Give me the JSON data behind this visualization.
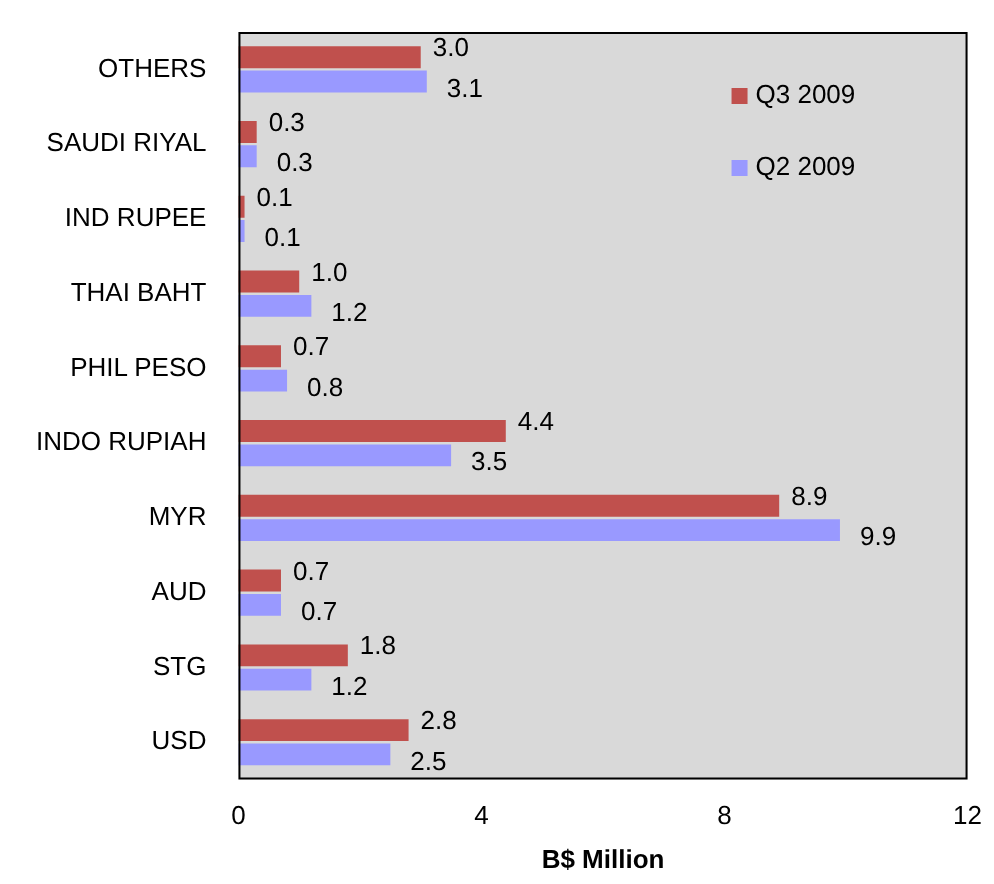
{
  "chart_data": {
    "type": "bar",
    "orientation": "horizontal",
    "xlabel": "B$ Million",
    "categories": [
      "OTHERS",
      "SAUDI RIYAL",
      "IND RUPEE",
      "THAI BAHT",
      "PHIL PESO",
      "INDO RUPIAH",
      "MYR",
      "AUD",
      "STG",
      "USD"
    ],
    "series": [
      {
        "name": "Q3 2009",
        "color": "#c0504d",
        "values": [
          3.0,
          0.3,
          0.1,
          1.0,
          0.7,
          4.4,
          8.9,
          0.7,
          1.8,
          2.8
        ],
        "value_labels": [
          "3.0",
          "0.3",
          "0.1",
          "1.0",
          "0.7",
          "4.4",
          "8.9",
          "0.7",
          "1.8",
          "2.8"
        ]
      },
      {
        "name": "Q2 2009",
        "color": "#9999ff",
        "values": [
          3.1,
          0.3,
          0.1,
          1.2,
          0.8,
          3.5,
          9.9,
          0.7,
          1.2,
          2.5
        ],
        "value_labels": [
          "3.1",
          "0.3",
          "0.1",
          "1.2",
          "0.8",
          "3.5",
          "9.9",
          "0.7",
          "1.2",
          "2.5"
        ]
      }
    ],
    "xlim": [
      0,
      12
    ],
    "xticks": [
      0,
      4,
      8,
      12
    ],
    "grid": false,
    "legend": "top right"
  }
}
